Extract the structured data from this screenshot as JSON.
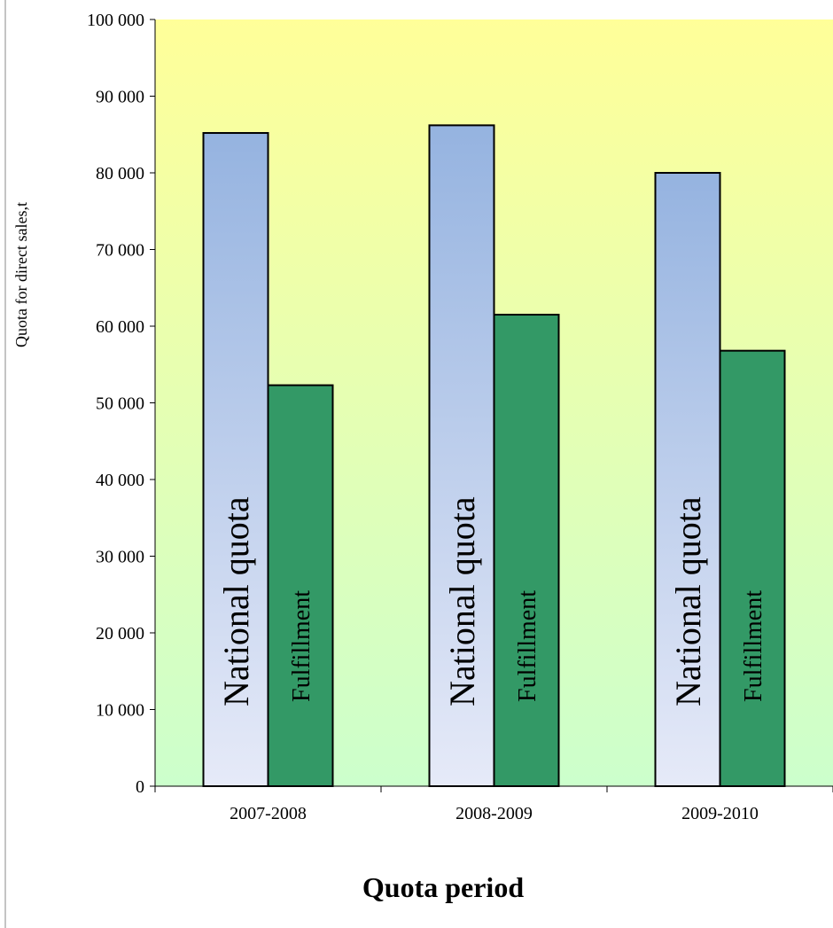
{
  "chart_data": {
    "type": "bar",
    "title": "",
    "xlabel": "Quota period",
    "ylabel": "Quota for direct sales,t",
    "categories": [
      "2007-2008",
      "2008-2009",
      "2009-2010"
    ],
    "series": [
      {
        "name": "National quota",
        "values": [
          85200,
          86200,
          80000
        ],
        "color_top": "#95b3e0",
        "color_bottom": "#e6eaf8"
      },
      {
        "name": "Fulfillment",
        "values": [
          52300,
          61500,
          56800
        ],
        "color": "#339966"
      }
    ],
    "ylim": [
      0,
      100000
    ],
    "yticks": [
      0,
      10000,
      20000,
      30000,
      40000,
      50000,
      60000,
      70000,
      80000,
      90000,
      100000
    ],
    "ytick_labels": [
      "0",
      "10 000",
      "20 000",
      "30 000",
      "40 000",
      "50 000",
      "60 000",
      "70 000",
      "80 000",
      "90 000",
      "100 000"
    ],
    "plot_background": {
      "top": "#ffff99",
      "bottom": "#ccffcc"
    },
    "grid": false,
    "legend": "none"
  }
}
